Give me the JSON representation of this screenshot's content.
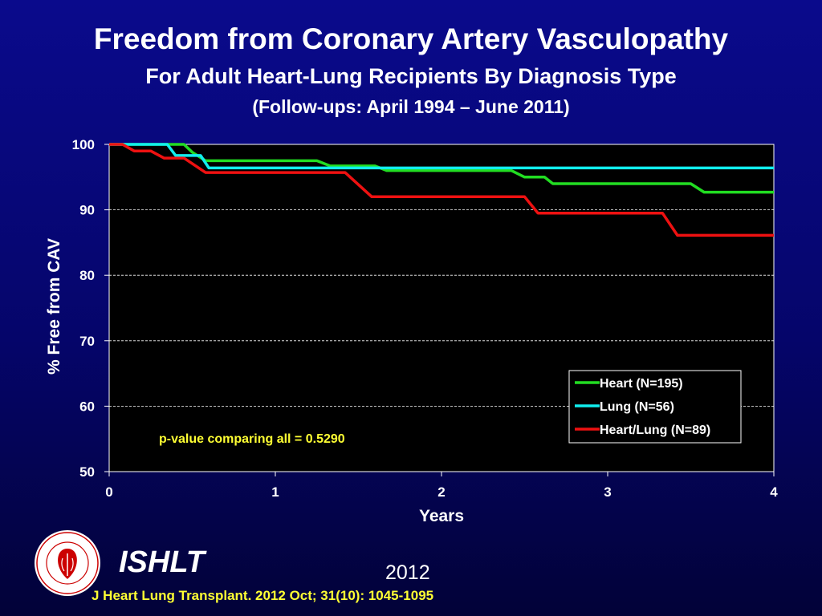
{
  "header": {
    "title": "Freedom from Coronary Artery Vasculopathy",
    "subtitle": "For Adult Heart-Lung Recipients By Diagnosis Type",
    "followup": "(Follow-ups: April 1994 – June 2011)"
  },
  "footer": {
    "org": "ISHLT",
    "year": "2012",
    "citation": "J Heart Lung Transplant.  2012 Oct; 31(10): 1045-1095",
    "logo_icon": "ishlt-logo-icon",
    "logo_ring_text": "INTERNATIONAL SOCIETY FOR HEART & LUNG TRANSPLANTATION"
  },
  "colors": {
    "background_top": "#0a0a8c",
    "plot_background": "#000000",
    "heart": "#22dd22",
    "lung": "#11eeee",
    "heart_lung": "#ee1111",
    "annotation": "#ffff33"
  },
  "chart_data": {
    "type": "line",
    "step": true,
    "xlabel": "Years",
    "ylabel": "% Free from CAV",
    "xlim": [
      0,
      4
    ],
    "ylim": [
      50,
      100
    ],
    "xticks": [
      "0",
      "1",
      "2",
      "3",
      "4"
    ],
    "yticks": [
      "50",
      "60",
      "70",
      "80",
      "90",
      "100"
    ],
    "grid": "horizontal dashed",
    "legend_position": "right",
    "annotation": "p-value comparing all = 0.5290",
    "series": [
      {
        "name": "Heart (N=195)",
        "color": "#22dd22",
        "points": [
          [
            0,
            100
          ],
          [
            0.45,
            100
          ],
          [
            0.5,
            98.8
          ],
          [
            0.58,
            97.5
          ],
          [
            1.25,
            97.5
          ],
          [
            1.33,
            96.7
          ],
          [
            1.6,
            96.7
          ],
          [
            1.67,
            96.0
          ],
          [
            2.42,
            96.0
          ],
          [
            2.5,
            95.0
          ],
          [
            2.62,
            95.0
          ],
          [
            2.67,
            94.0
          ],
          [
            3.5,
            94.0
          ],
          [
            3.58,
            92.7
          ],
          [
            4.0,
            92.7
          ]
        ]
      },
      {
        "name": "Lung (N=56)",
        "color": "#11eeee",
        "points": [
          [
            0,
            100
          ],
          [
            0.35,
            100
          ],
          [
            0.4,
            98.3
          ],
          [
            0.55,
            98.3
          ],
          [
            0.6,
            96.4
          ],
          [
            4.0,
            96.4
          ]
        ]
      },
      {
        "name": "Heart/Lung (N=89)",
        "color": "#ee1111",
        "points": [
          [
            0,
            100
          ],
          [
            0.08,
            100
          ],
          [
            0.15,
            99.0
          ],
          [
            0.25,
            99.0
          ],
          [
            0.33,
            97.9
          ],
          [
            0.45,
            97.9
          ],
          [
            0.58,
            95.7
          ],
          [
            1.42,
            95.7
          ],
          [
            1.58,
            92.0
          ],
          [
            2.5,
            92.0
          ],
          [
            2.58,
            89.5
          ],
          [
            3.33,
            89.5
          ],
          [
            3.42,
            86.1
          ],
          [
            4.0,
            86.1
          ]
        ]
      }
    ]
  }
}
